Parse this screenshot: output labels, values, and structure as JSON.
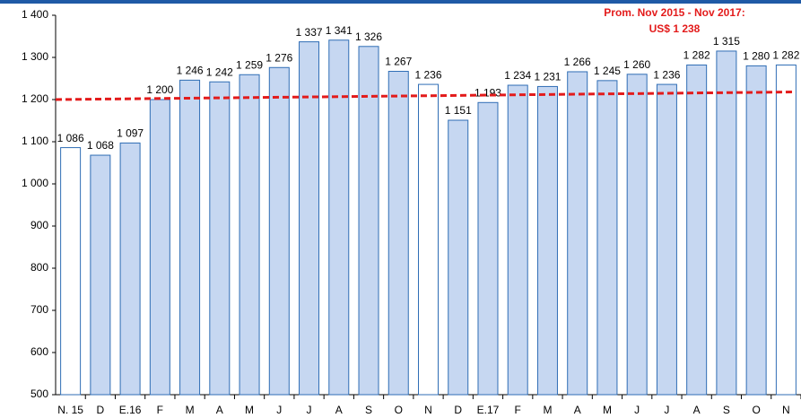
{
  "chart_data": {
    "type": "bar",
    "annotation": [
      "Prom. Nov 2015 -  Nov 2017:",
      "US$ 1 238"
    ],
    "categories": [
      "N. 15",
      "D",
      "E.16",
      "F",
      "M",
      "A",
      "M",
      "J",
      "J",
      "A",
      "S",
      "O",
      "N",
      "D",
      "E.17",
      "F",
      "M",
      "A",
      "M",
      "J",
      "J",
      "A",
      "S",
      "O",
      "N"
    ],
    "values": [
      1086,
      1068,
      1097,
      1200,
      1246,
      1242,
      1259,
      1276,
      1337,
      1341,
      1326,
      1267,
      1236,
      1151,
      1193,
      1234,
      1231,
      1266,
      1245,
      1260,
      1236,
      1282,
      1315,
      1280,
      1282
    ],
    "value_labels": [
      "1 086",
      "1 068",
      "1 097",
      "1 200",
      "1 246",
      "1 242",
      "1 259",
      "1 276",
      "1 337",
      "1 341",
      "1 326",
      "1 267",
      "1 236",
      "1 151",
      "1 193",
      "1 234",
      "1 231",
      "1 266",
      "1 245",
      "1 260",
      "1 236",
      "1 282",
      "1 315",
      "1 280",
      "1 282"
    ],
    "colors": [
      "#ffffff",
      "#c6d7f1",
      "#c6d7f1",
      "#c6d7f1",
      "#c6d7f1",
      "#c6d7f1",
      "#c6d7f1",
      "#c6d7f1",
      "#c6d7f1",
      "#c6d7f1",
      "#c6d7f1",
      "#c6d7f1",
      "#ffffff",
      "#c6d7f1",
      "#c6d7f1",
      "#c6d7f1",
      "#c6d7f1",
      "#c6d7f1",
      "#c6d7f1",
      "#c6d7f1",
      "#c6d7f1",
      "#c6d7f1",
      "#c6d7f1",
      "#c6d7f1",
      "#ffffff"
    ],
    "border_color": "#2f6db5",
    "trend": {
      "color": "#e31b1b",
      "values": [
        1200,
        1218
      ]
    },
    "ylim": [
      500,
      1400
    ],
    "yticks": [
      500,
      600,
      700,
      800,
      900,
      {
        "value": 1000,
        "label": "1 000"
      },
      {
        "value": 1100,
        "label": "1 100"
      },
      {
        "value": 1200,
        "label": "1 200"
      },
      {
        "value": 1300,
        "label": "1 300"
      },
      {
        "value": 1400,
        "label": "1 400"
      }
    ],
    "grid": false
  }
}
